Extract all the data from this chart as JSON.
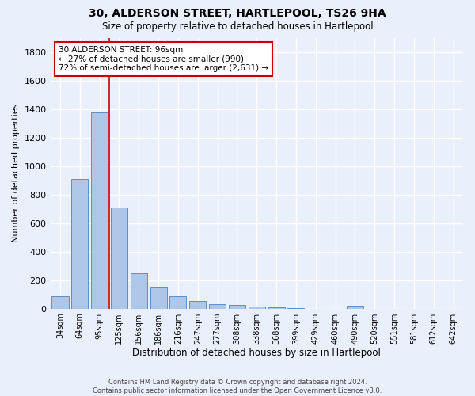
{
  "title": "30, ALDERSON STREET, HARTLEPOOL, TS26 9HA",
  "subtitle": "Size of property relative to detached houses in Hartlepool",
  "xlabel": "Distribution of detached houses by size in Hartlepool",
  "ylabel": "Number of detached properties",
  "categories": [
    "34sqm",
    "64sqm",
    "95sqm",
    "125sqm",
    "156sqm",
    "186sqm",
    "216sqm",
    "247sqm",
    "277sqm",
    "308sqm",
    "338sqm",
    "368sqm",
    "399sqm",
    "429sqm",
    "460sqm",
    "490sqm",
    "520sqm",
    "551sqm",
    "581sqm",
    "612sqm",
    "642sqm"
  ],
  "values": [
    85,
    910,
    1375,
    710,
    248,
    148,
    88,
    55,
    30,
    27,
    12,
    7,
    5,
    0,
    0,
    18,
    0,
    0,
    0,
    0,
    0
  ],
  "bar_color": "#aec6e8",
  "bar_edge_color": "#5b8fc9",
  "bg_color": "#eaf0fb",
  "grid_color": "#ffffff",
  "marker_line_color": "#cc0000",
  "annotation_text": "30 ALDERSON STREET: 96sqm\n← 27% of detached houses are smaller (990)\n72% of semi-detached houses are larger (2,631) →",
  "annotation_box_color": "#ffffff",
  "annotation_box_edge": "#cc0000",
  "footer_text": "Contains HM Land Registry data © Crown copyright and database right 2024.\nContains public sector information licensed under the Open Government Licence v3.0.",
  "ylim": [
    0,
    1900
  ],
  "yticks": [
    0,
    200,
    400,
    600,
    800,
    1000,
    1200,
    1400,
    1600,
    1800
  ]
}
